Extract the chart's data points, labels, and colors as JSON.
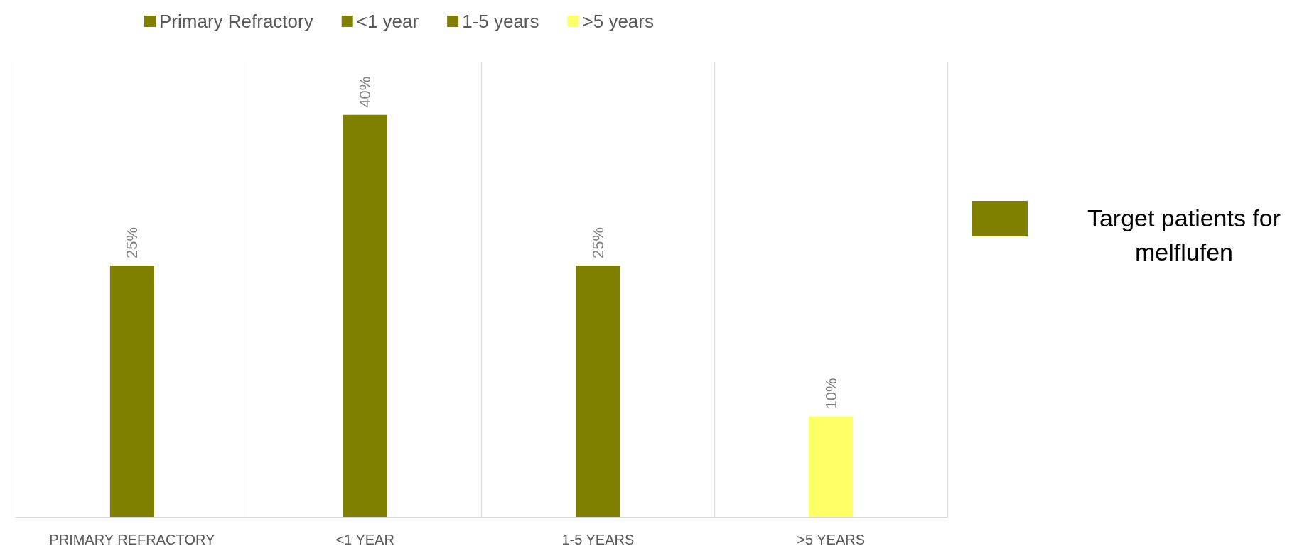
{
  "chart_data": {
    "type": "bar",
    "stacked": true,
    "categories": [
      "PRIMARY REFRACTORY",
      "<1 YEAR",
      "1-5 YEARS",
      ">5 YEARS"
    ],
    "series": [
      {
        "name": "Primary Refractory",
        "color": "#808000",
        "values": [
          25,
          null,
          null,
          null
        ],
        "value_labels": [
          "25%",
          null,
          null,
          null
        ]
      },
      {
        "name": "<1 year",
        "color": "#808000",
        "values": [
          null,
          40,
          null,
          null
        ],
        "value_labels": [
          null,
          "40%",
          null,
          null
        ]
      },
      {
        "name": "1-5 years",
        "color": "#808000",
        "values": [
          null,
          null,
          25,
          null
        ],
        "value_labels": [
          null,
          null,
          "25%",
          null
        ]
      },
      {
        "name": ">5 years",
        "color": "#ffff66",
        "values": [
          null,
          null,
          null,
          10
        ],
        "value_labels": [
          null,
          null,
          null,
          "10%"
        ]
      }
    ],
    "grid": "x",
    "legend": "top",
    "annotations": [
      "Target patients for melflufen"
    ]
  }
}
